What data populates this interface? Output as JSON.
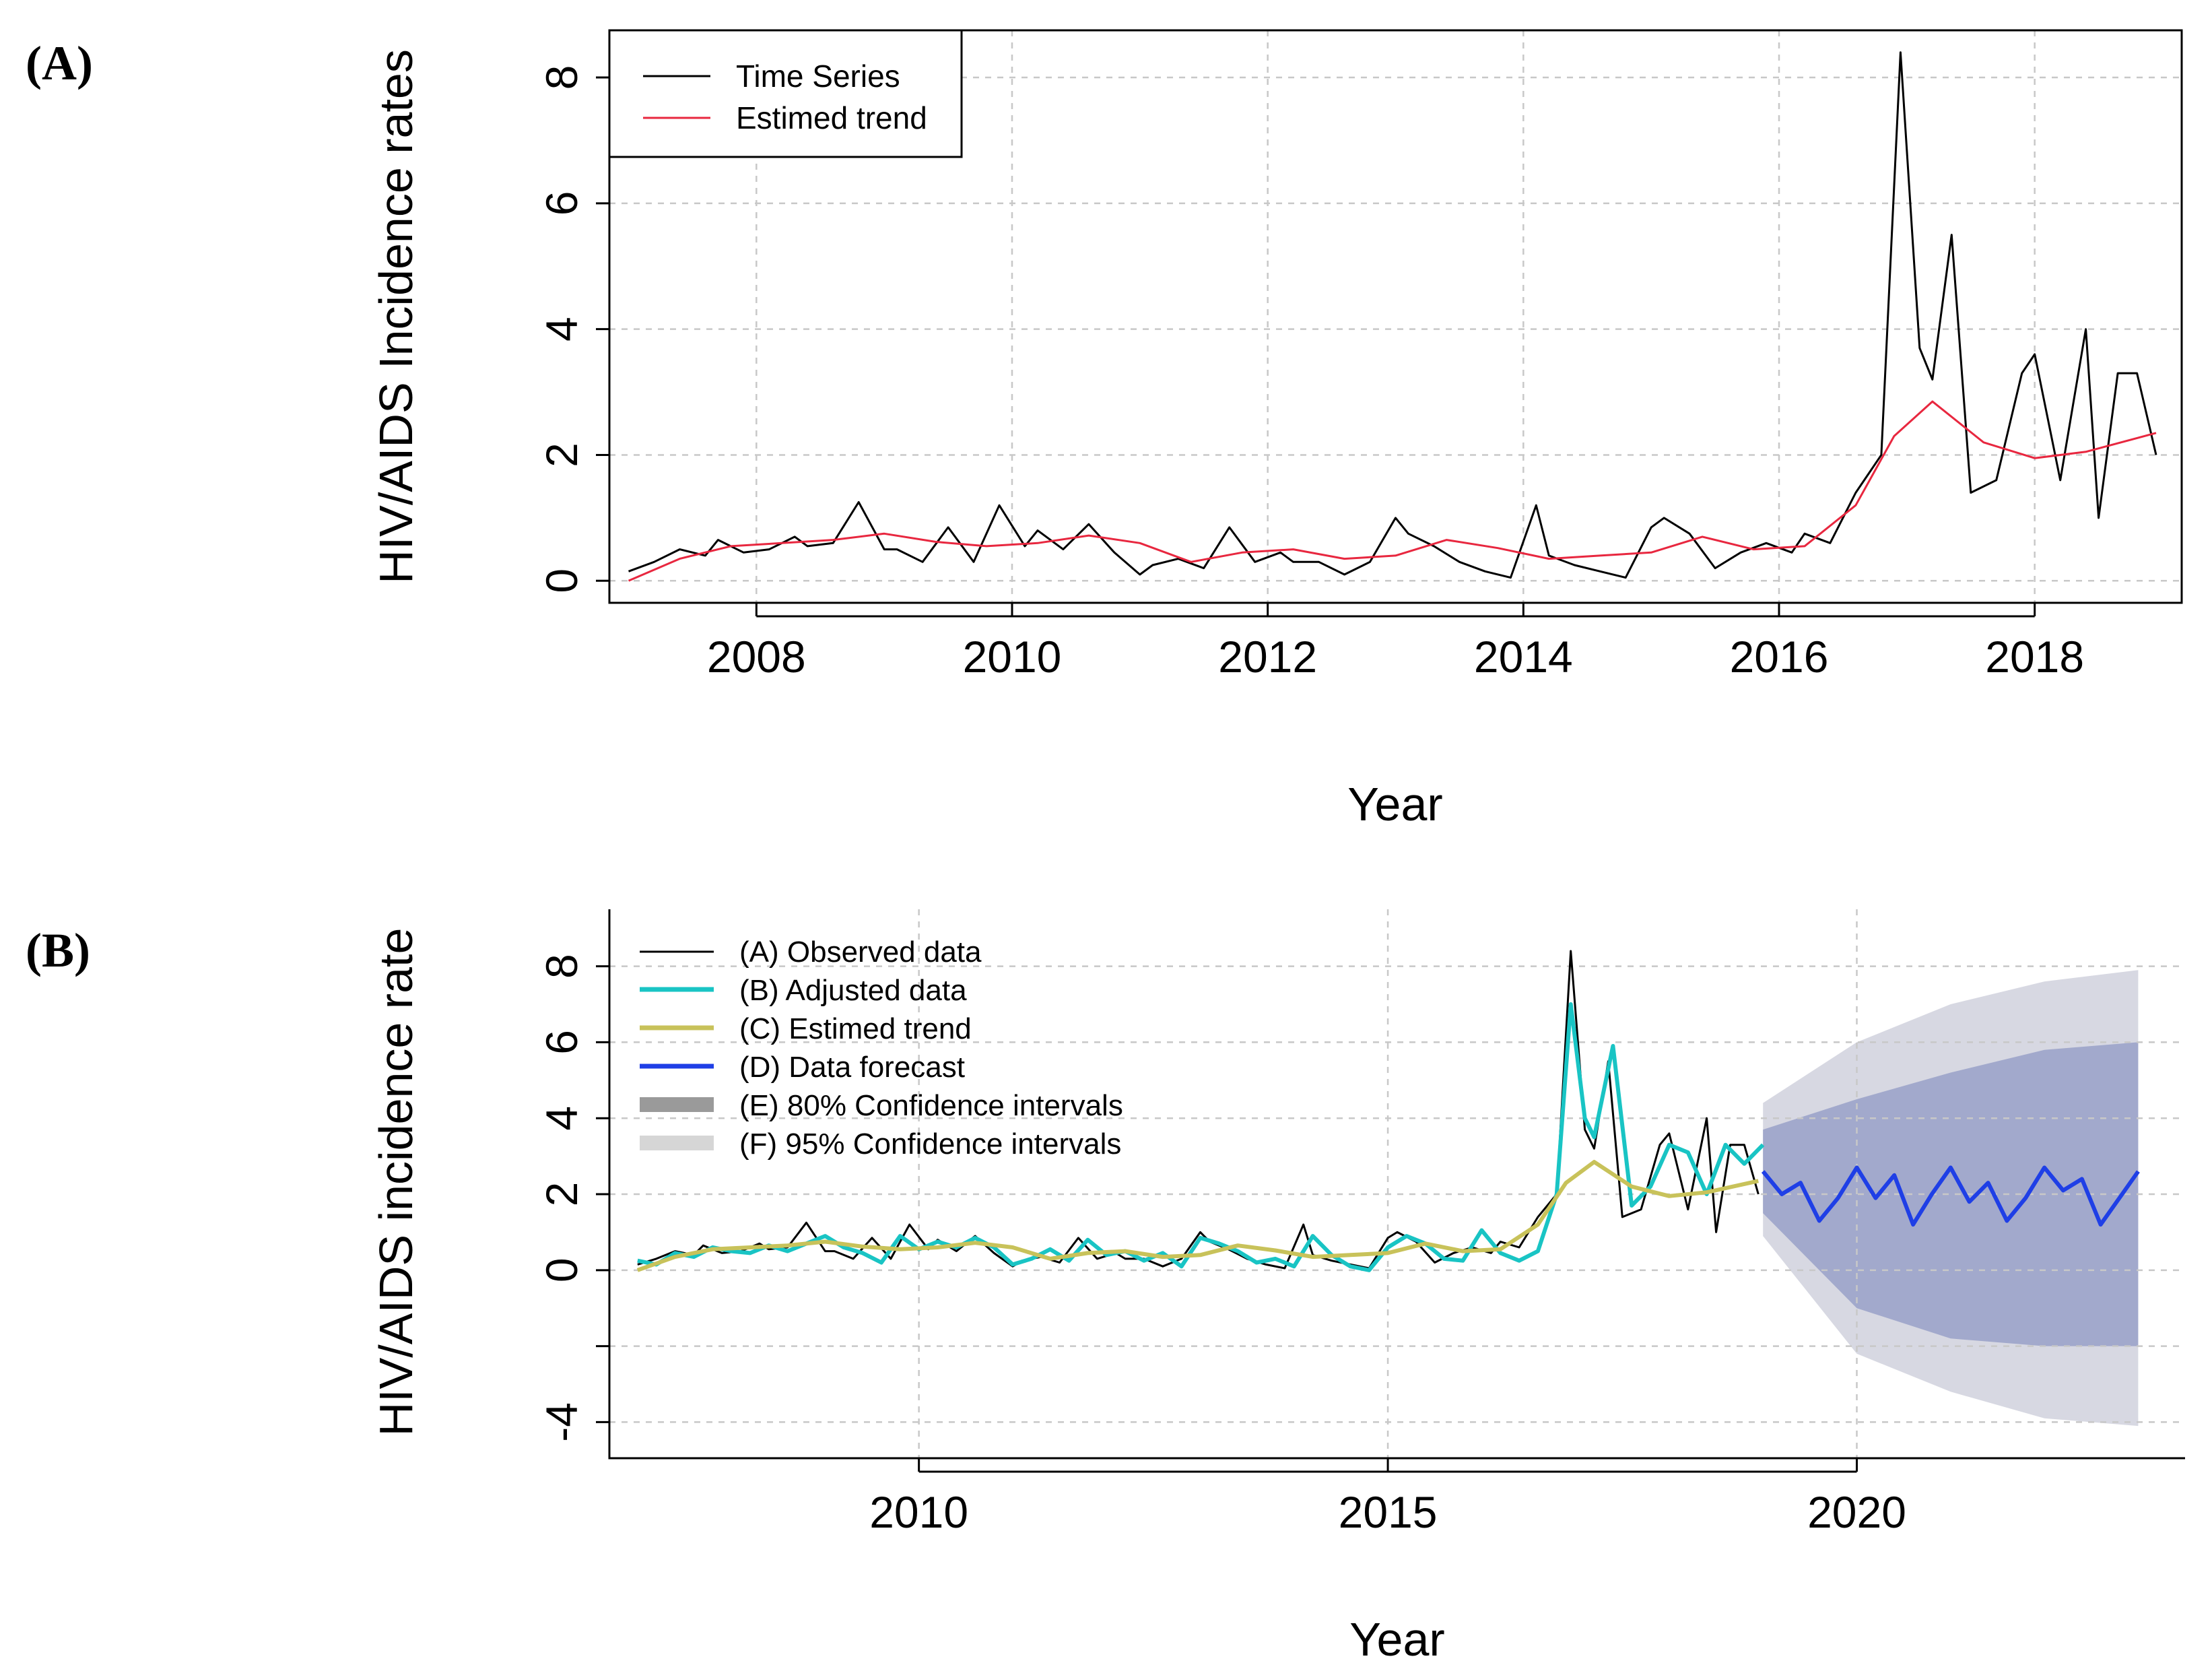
{
  "chart_data": [
    {
      "type": "line",
      "panel_label": "(A)",
      "xlabel": "Year",
      "ylabel": "HIV/AIDS Incidence rates",
      "xlim": [
        2006.85,
        2019.15
      ],
      "ylim": [
        -0.35,
        8.75
      ],
      "xticks": [
        2008,
        2010,
        2012,
        2014,
        2016,
        2018
      ],
      "xtick_labels": [
        "2008",
        "2010",
        "2012",
        "2014",
        "2016",
        "2018"
      ],
      "yticks": [
        0,
        2,
        4,
        6,
        8
      ],
      "ytick_labels": [
        "0",
        "2",
        "4",
        "6",
        "8"
      ],
      "grid": true,
      "legend": {
        "position": "top-left",
        "entries": [
          "Time Series",
          "Estimed trend"
        ]
      },
      "colors": {
        "series": "#000000",
        "trend": "#e8273f"
      },
      "series": [
        {
          "name": "Time Series",
          "x": [
            2007.0,
            2007.2,
            2007.4,
            2007.6,
            2007.7,
            2007.9,
            2008.1,
            2008.3,
            2008.4,
            2008.6,
            2008.8,
            2009.0,
            2009.1,
            2009.3,
            2009.5,
            2009.7,
            2009.9,
            2010.1,
            2010.2,
            2010.4,
            2010.6,
            2010.8,
            2011.0,
            2011.1,
            2011.3,
            2011.5,
            2011.7,
            2011.9,
            2012.1,
            2012.2,
            2012.4,
            2012.6,
            2012.8,
            2013.0,
            2013.1,
            2013.3,
            2013.5,
            2013.7,
            2013.9,
            2014.1,
            2014.2,
            2014.4,
            2014.6,
            2014.8,
            2015.0,
            2015.1,
            2015.3,
            2015.5,
            2015.7,
            2015.9,
            2016.1,
            2016.2,
            2016.4,
            2016.6,
            2016.8,
            2016.95,
            2017.1,
            2017.2,
            2017.35,
            2017.5,
            2017.7,
            2017.9,
            2018.0,
            2018.2,
            2018.4,
            2018.5,
            2018.65,
            2018.8,
            2018.95
          ],
          "y": [
            0.15,
            0.3,
            0.5,
            0.4,
            0.65,
            0.45,
            0.5,
            0.7,
            0.55,
            0.6,
            1.25,
            0.5,
            0.5,
            0.3,
            0.85,
            0.3,
            1.2,
            0.55,
            0.8,
            0.5,
            0.9,
            0.45,
            0.1,
            0.25,
            0.35,
            0.2,
            0.85,
            0.3,
            0.45,
            0.3,
            0.3,
            0.1,
            0.3,
            1.0,
            0.75,
            0.55,
            0.3,
            0.15,
            0.05,
            1.2,
            0.4,
            0.25,
            0.15,
            0.05,
            0.85,
            1.0,
            0.75,
            0.2,
            0.45,
            0.6,
            0.45,
            0.75,
            0.6,
            1.4,
            2.0,
            8.4,
            3.7,
            3.2,
            5.5,
            1.4,
            1.6,
            3.3,
            3.6,
            1.6,
            4.0,
            1.0,
            3.3,
            3.3,
            2.0
          ]
        },
        {
          "name": "Estimed trend",
          "x": [
            2007.0,
            2007.4,
            2007.8,
            2008.2,
            2008.6,
            2009.0,
            2009.4,
            2009.8,
            2010.2,
            2010.6,
            2011.0,
            2011.4,
            2011.8,
            2012.2,
            2012.6,
            2013.0,
            2013.4,
            2013.8,
            2014.2,
            2014.6,
            2015.0,
            2015.4,
            2015.8,
            2016.2,
            2016.6,
            2016.9,
            2017.2,
            2017.6,
            2018.0,
            2018.4,
            2018.95
          ],
          "y": [
            0.0,
            0.35,
            0.55,
            0.6,
            0.65,
            0.75,
            0.62,
            0.55,
            0.6,
            0.72,
            0.6,
            0.3,
            0.45,
            0.5,
            0.35,
            0.4,
            0.65,
            0.52,
            0.35,
            0.4,
            0.45,
            0.7,
            0.5,
            0.55,
            1.2,
            2.3,
            2.85,
            2.2,
            1.95,
            2.05,
            2.35
          ]
        }
      ]
    },
    {
      "type": "line",
      "panel_label": "(B)",
      "xlabel": "Year",
      "ylabel": "HIV/AIDS incidence rate",
      "xlim": [
        2006.7,
        2023.5
      ],
      "ylim": [
        -4.95,
        9.5
      ],
      "xticks": [
        2010,
        2015,
        2020
      ],
      "xtick_labels": [
        "2010",
        "2015",
        "2020"
      ],
      "yticks": [
        -4,
        0,
        2,
        4,
        6,
        8
      ],
      "ytick_labels": [
        "-4",
        "0",
        "2",
        "4",
        "6",
        "8"
      ],
      "grid": true,
      "legend": {
        "position": "top-left",
        "entries": [
          "(A) Observed data",
          "(B) Adjusted data",
          "(C) Estimed trend",
          "(D) Data forecast",
          "(E) 80% Confidence intervals",
          "(F) 95% Confidence intervals"
        ]
      },
      "colors": {
        "observed": "#000000",
        "adjusted": "#19c4c4",
        "trend": "#c8c25a",
        "forecast": "#1f3fe6",
        "ci80": "#a2a9cc",
        "ci95": "#d7d8e2",
        "legend_ci80": "#9a9a9a",
        "legend_ci95": "#d6d6d6"
      },
      "series": [
        {
          "name": "(A) Observed data",
          "x": [
            2007.0,
            2007.2,
            2007.4,
            2007.6,
            2007.7,
            2007.9,
            2008.1,
            2008.3,
            2008.4,
            2008.6,
            2008.8,
            2009.0,
            2009.1,
            2009.3,
            2009.5,
            2009.7,
            2009.9,
            2010.1,
            2010.2,
            2010.4,
            2010.6,
            2010.8,
            2011.0,
            2011.1,
            2011.3,
            2011.5,
            2011.7,
            2011.9,
            2012.1,
            2012.2,
            2012.4,
            2012.6,
            2012.8,
            2013.0,
            2013.1,
            2013.3,
            2013.5,
            2013.7,
            2013.9,
            2014.1,
            2014.2,
            2014.4,
            2014.6,
            2014.8,
            2015.0,
            2015.1,
            2015.3,
            2015.5,
            2015.7,
            2015.9,
            2016.1,
            2016.2,
            2016.4,
            2016.6,
            2016.8,
            2016.95,
            2017.1,
            2017.2,
            2017.35,
            2017.5,
            2017.7,
            2017.9,
            2018.0,
            2018.2,
            2018.4,
            2018.5,
            2018.65,
            2018.8,
            2018.95
          ],
          "y": [
            0.15,
            0.3,
            0.5,
            0.4,
            0.65,
            0.45,
            0.5,
            0.7,
            0.55,
            0.6,
            1.25,
            0.5,
            0.5,
            0.3,
            0.85,
            0.3,
            1.2,
            0.55,
            0.8,
            0.5,
            0.9,
            0.45,
            0.1,
            0.25,
            0.35,
            0.2,
            0.85,
            0.3,
            0.45,
            0.3,
            0.3,
            0.1,
            0.3,
            1.0,
            0.75,
            0.55,
            0.3,
            0.15,
            0.05,
            1.2,
            0.4,
            0.25,
            0.15,
            0.05,
            0.85,
            1.0,
            0.75,
            0.2,
            0.45,
            0.6,
            0.45,
            0.75,
            0.6,
            1.4,
            2.0,
            8.4,
            3.7,
            3.2,
            5.5,
            1.4,
            1.6,
            3.3,
            3.6,
            1.6,
            4.0,
            1.0,
            3.3,
            3.3,
            2.0
          ]
        },
        {
          "name": "(B) Adjusted data",
          "x": [
            2007.0,
            2007.2,
            2007.4,
            2007.6,
            2007.8,
            2008.0,
            2008.2,
            2008.4,
            2008.6,
            2008.8,
            2009.0,
            2009.2,
            2009.4,
            2009.6,
            2009.8,
            2010.0,
            2010.2,
            2010.4,
            2010.6,
            2010.8,
            2011.0,
            2011.2,
            2011.4,
            2011.6,
            2011.8,
            2012.0,
            2012.2,
            2012.4,
            2012.6,
            2012.8,
            2013.0,
            2013.2,
            2013.4,
            2013.6,
            2013.8,
            2014.0,
            2014.2,
            2014.4,
            2014.6,
            2014.8,
            2015.0,
            2015.2,
            2015.4,
            2015.6,
            2015.8,
            2016.0,
            2016.2,
            2016.4,
            2016.6,
            2016.8,
            2016.95,
            2017.1,
            2017.2,
            2017.4,
            2017.6,
            2017.8,
            2018.0,
            2018.2,
            2018.4,
            2018.6,
            2018.8,
            2019.0
          ],
          "y": [
            0.25,
            0.15,
            0.45,
            0.35,
            0.6,
            0.5,
            0.45,
            0.65,
            0.5,
            0.7,
            0.9,
            0.6,
            0.45,
            0.2,
            0.9,
            0.55,
            0.75,
            0.6,
            0.85,
            0.6,
            0.15,
            0.3,
            0.55,
            0.25,
            0.8,
            0.4,
            0.5,
            0.25,
            0.45,
            0.1,
            0.85,
            0.7,
            0.5,
            0.2,
            0.3,
            0.1,
            0.9,
            0.4,
            0.1,
            0.0,
            0.6,
            0.9,
            0.7,
            0.3,
            0.25,
            1.05,
            0.45,
            0.25,
            0.5,
            2.0,
            7.0,
            4.0,
            3.5,
            5.9,
            1.7,
            2.2,
            3.3,
            3.1,
            2.0,
            3.3,
            2.8,
            3.3
          ]
        },
        {
          "name": "(C) Estimed trend",
          "x": [
            2007.0,
            2007.4,
            2007.8,
            2008.2,
            2008.6,
            2009.0,
            2009.4,
            2009.8,
            2010.2,
            2010.6,
            2011.0,
            2011.4,
            2011.8,
            2012.2,
            2012.6,
            2013.0,
            2013.4,
            2013.8,
            2014.2,
            2014.6,
            2015.0,
            2015.4,
            2015.8,
            2016.2,
            2016.6,
            2016.9,
            2017.2,
            2017.6,
            2018.0,
            2018.4,
            2018.95
          ],
          "y": [
            0.0,
            0.35,
            0.55,
            0.6,
            0.65,
            0.75,
            0.62,
            0.55,
            0.6,
            0.72,
            0.6,
            0.3,
            0.45,
            0.5,
            0.35,
            0.4,
            0.65,
            0.52,
            0.35,
            0.4,
            0.45,
            0.7,
            0.5,
            0.55,
            1.2,
            2.3,
            2.85,
            2.2,
            1.95,
            2.05,
            2.35
          ]
        },
        {
          "name": "(D) Data forecast",
          "x": [
            2019.0,
            2019.2,
            2019.4,
            2019.6,
            2019.8,
            2020.0,
            2020.2,
            2020.4,
            2020.6,
            2020.8,
            2021.0,
            2021.2,
            2021.4,
            2021.6,
            2021.8,
            2022.0,
            2022.2,
            2022.4,
            2022.6,
            2022.8,
            2023.0
          ],
          "y": [
            2.6,
            2.0,
            2.3,
            1.3,
            1.9,
            2.7,
            1.9,
            2.5,
            1.2,
            2.0,
            2.7,
            1.8,
            2.3,
            1.3,
            1.9,
            2.7,
            2.1,
            2.4,
            1.2,
            1.9,
            2.6
          ]
        },
        {
          "name": "(E) 80% Confidence intervals",
          "x": [
            2019.0,
            2020.0,
            2021.0,
            2022.0,
            2023.0
          ],
          "lower": [
            1.5,
            -1.0,
            -1.8,
            -2.0,
            -2.0
          ],
          "upper": [
            3.7,
            4.5,
            5.2,
            5.8,
            6.0
          ]
        },
        {
          "name": "(F) 95% Confidence intervals",
          "x": [
            2019.0,
            2020.0,
            2021.0,
            2022.0,
            2023.0
          ],
          "lower": [
            0.9,
            -2.2,
            -3.2,
            -3.9,
            -4.1
          ],
          "upper": [
            4.4,
            6.0,
            7.0,
            7.6,
            7.9
          ]
        }
      ]
    }
  ]
}
